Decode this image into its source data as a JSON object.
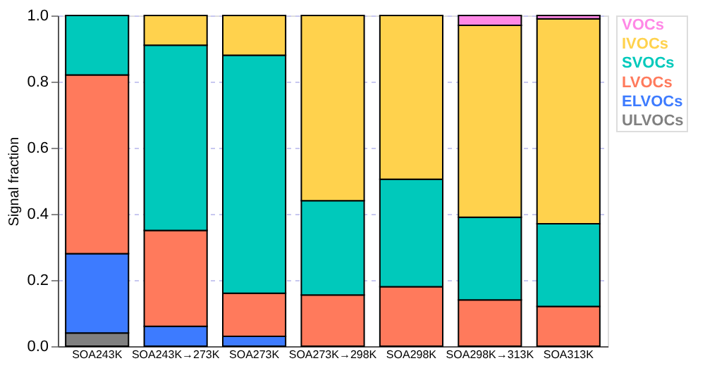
{
  "chart_data": {
    "type": "bar",
    "stacked": true,
    "ylabel": "Signal fraction",
    "categories": [
      "SOA243K",
      "SOA243K→273K",
      "SOA273K",
      "SOA273K→298K",
      "SOA298K",
      "SOA298K→313K",
      "SOA313K"
    ],
    "series": [
      {
        "name": "ULVOCs",
        "color": "#808080",
        "values": [
          0.04,
          0,
          0,
          0,
          0,
          0,
          0
        ]
      },
      {
        "name": "ELVOCs",
        "color": "#3d7bff",
        "values": [
          0.24,
          0.06,
          0.03,
          0,
          0,
          0,
          0
        ]
      },
      {
        "name": "LVOCs",
        "color": "#ff7a5c",
        "values": [
          0.54,
          0.29,
          0.13,
          0.155,
          0.18,
          0.14,
          0.12
        ]
      },
      {
        "name": "SVOCs",
        "color": "#00c9bb",
        "values": [
          0.18,
          0.56,
          0.72,
          0.285,
          0.325,
          0.25,
          0.25
        ]
      },
      {
        "name": "IVOCs",
        "color": "#ffd24d",
        "values": [
          0,
          0.09,
          0.12,
          0.56,
          0.495,
          0.58,
          0.62
        ]
      },
      {
        "name": "VOCs",
        "color": "#ff88e6",
        "values": [
          0,
          0,
          0,
          0,
          0,
          0.03,
          0.01
        ]
      }
    ],
    "ylim": [
      0,
      1.0
    ],
    "yticks": [
      {
        "value": 0,
        "label": "0.0"
      },
      {
        "value": 0.2,
        "label": "0.2"
      },
      {
        "value": 0.4,
        "label": "0.4"
      },
      {
        "value": 0.6,
        "label": "0.6"
      },
      {
        "value": 0.8,
        "label": "0.8"
      },
      {
        "value": 1.0,
        "label": "1.0"
      }
    ],
    "grid": true,
    "legend": "top right"
  }
}
